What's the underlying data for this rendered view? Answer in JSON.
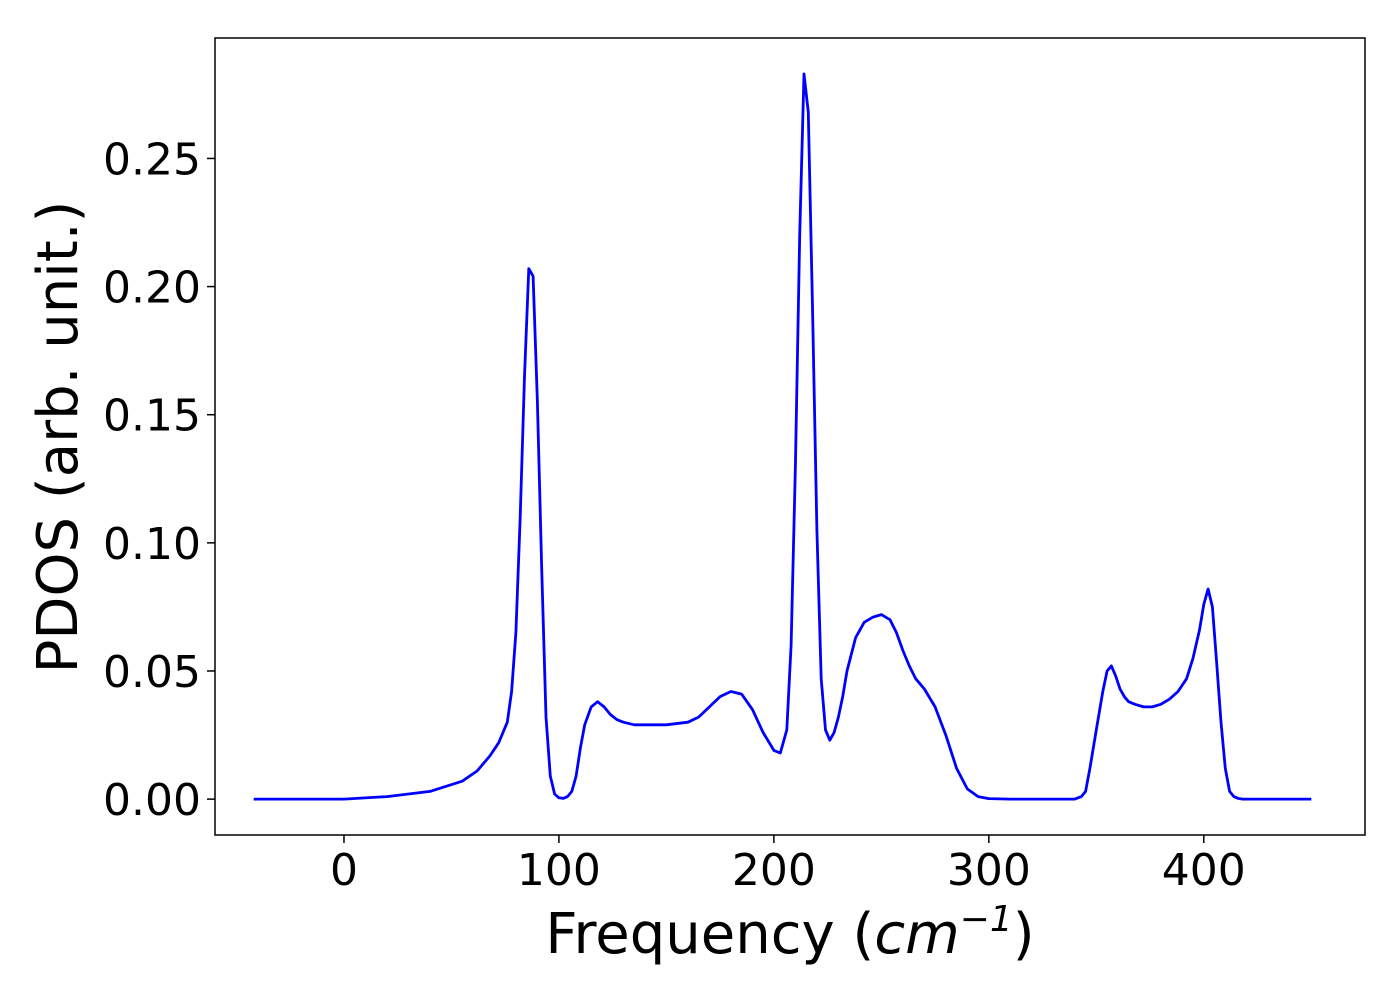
{
  "chart_data": {
    "type": "line",
    "xlabel": "Frequency (",
    "xlabel_unit": "cm",
    "xlabel_exp": "−1",
    "xlabel_close": ")",
    "ylabel": "PDOS (arb. unit.)",
    "xlim": [
      -60,
      475
    ],
    "ylim": [
      -0.014,
      0.297
    ],
    "grid": false,
    "xticks": [
      0,
      100,
      200,
      300,
      400
    ],
    "xtick_labels": [
      "0",
      "100",
      "200",
      "300",
      "400"
    ],
    "yticks": [
      0.0,
      0.05,
      0.1,
      0.15,
      0.2,
      0.25
    ],
    "ytick_labels": [
      "0.00",
      "0.05",
      "0.10",
      "0.15",
      "0.20",
      "0.25"
    ],
    "line_color": "#0000ff",
    "series": [
      {
        "x": [
          -42,
          0,
          20,
          40,
          55,
          62,
          68,
          72,
          76,
          78,
          80,
          82,
          84,
          86,
          88,
          90,
          92,
          94,
          96,
          98,
          100,
          102,
          104,
          106,
          108,
          110,
          112,
          115,
          118,
          121,
          124,
          127,
          130,
          135,
          140,
          150,
          160,
          165,
          170,
          175,
          180,
          185,
          190,
          195,
          200,
          203,
          206,
          208,
          210,
          212,
          214,
          216,
          218,
          220,
          222,
          224,
          226,
          228,
          230,
          232,
          234,
          238,
          242,
          246,
          250,
          254,
          257,
          260,
          263,
          266,
          270,
          275,
          280,
          285,
          290,
          295,
          300,
          310,
          320,
          330,
          340,
          343,
          345,
          347,
          350,
          353,
          355,
          357,
          359,
          361,
          363,
          365,
          368,
          372,
          376,
          380,
          384,
          388,
          392,
          395,
          398,
          400,
          402,
          404,
          406,
          408,
          410,
          412,
          414,
          416,
          418,
          420,
          423,
          428,
          450
        ],
        "y": [
          0.0,
          0.0,
          0.001,
          0.003,
          0.007,
          0.011,
          0.017,
          0.022,
          0.03,
          0.042,
          0.065,
          0.11,
          0.165,
          0.207,
          0.204,
          0.155,
          0.09,
          0.032,
          0.009,
          0.002,
          0.0005,
          0.0003,
          0.001,
          0.003,
          0.009,
          0.02,
          0.029,
          0.036,
          0.038,
          0.036,
          0.033,
          0.031,
          0.03,
          0.029,
          0.029,
          0.029,
          0.03,
          0.032,
          0.036,
          0.04,
          0.042,
          0.041,
          0.035,
          0.026,
          0.019,
          0.018,
          0.027,
          0.06,
          0.13,
          0.22,
          0.283,
          0.268,
          0.19,
          0.105,
          0.047,
          0.027,
          0.023,
          0.026,
          0.032,
          0.04,
          0.05,
          0.063,
          0.069,
          0.071,
          0.072,
          0.07,
          0.065,
          0.058,
          0.052,
          0.047,
          0.043,
          0.036,
          0.025,
          0.012,
          0.004,
          0.001,
          0.0002,
          0.0,
          0.0,
          0.0,
          0.0,
          0.001,
          0.003,
          0.012,
          0.027,
          0.042,
          0.05,
          0.052,
          0.048,
          0.043,
          0.04,
          0.038,
          0.037,
          0.036,
          0.036,
          0.037,
          0.039,
          0.042,
          0.047,
          0.055,
          0.066,
          0.076,
          0.082,
          0.075,
          0.053,
          0.03,
          0.012,
          0.003,
          0.001,
          0.0003,
          0.0,
          0.0,
          0.0,
          0.0,
          0.0
        ]
      }
    ]
  }
}
